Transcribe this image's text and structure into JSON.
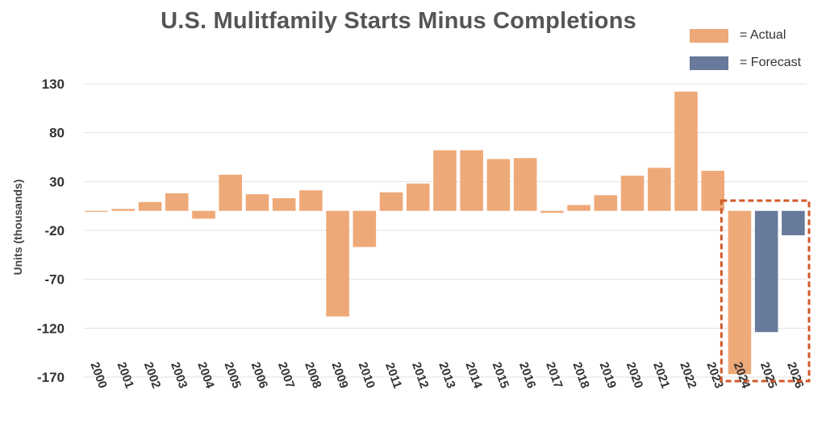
{
  "chart_data": {
    "type": "bar",
    "title": "U.S. Mulitfamily Starts Minus Completions",
    "xlabel": "",
    "ylabel": "Units (thousands)",
    "ylim": [
      -170,
      130
    ],
    "yticks": [
      "130",
      "80",
      "30",
      "-20",
      "-70",
      "-120",
      "-170"
    ],
    "grid": true,
    "legend_position": "top-right",
    "categories": [
      "2000",
      "2001",
      "2002",
      "2003",
      "2004",
      "2005",
      "2006",
      "2007",
      "2008",
      "2009",
      "2010",
      "2011",
      "2012",
      "2013",
      "2014",
      "2015",
      "2016",
      "2017",
      "2018",
      "2019",
      "2020",
      "2021",
      "2022",
      "2023",
      "2024",
      "2025",
      "2026"
    ],
    "values": [
      -1,
      2,
      9,
      18,
      -8,
      37,
      17,
      13,
      21,
      -108,
      -37,
      19,
      28,
      62,
      62,
      53,
      54,
      -2,
      6,
      16,
      36,
      44,
      122,
      41,
      -167,
      -124,
      -25
    ],
    "bar_kinds": [
      "actual",
      "actual",
      "actual",
      "actual",
      "actual",
      "actual",
      "actual",
      "actual",
      "actual",
      "actual",
      "actual",
      "actual",
      "actual",
      "actual",
      "actual",
      "actual",
      "actual",
      "actual",
      "actual",
      "actual",
      "actual",
      "actual",
      "actual",
      "actual",
      "actual",
      "forecast",
      "forecast"
    ],
    "legend": [
      {
        "label": "= Actual",
        "kind": "actual"
      },
      {
        "label": "= Forecast",
        "kind": "forecast"
      }
    ],
    "highlight_box_categories": [
      "2024",
      "2026"
    ]
  },
  "colors": {
    "actual": "#eea978",
    "forecast": "#687a9c",
    "highlight": "#d05a2a",
    "grid": "#e2e2e2"
  }
}
